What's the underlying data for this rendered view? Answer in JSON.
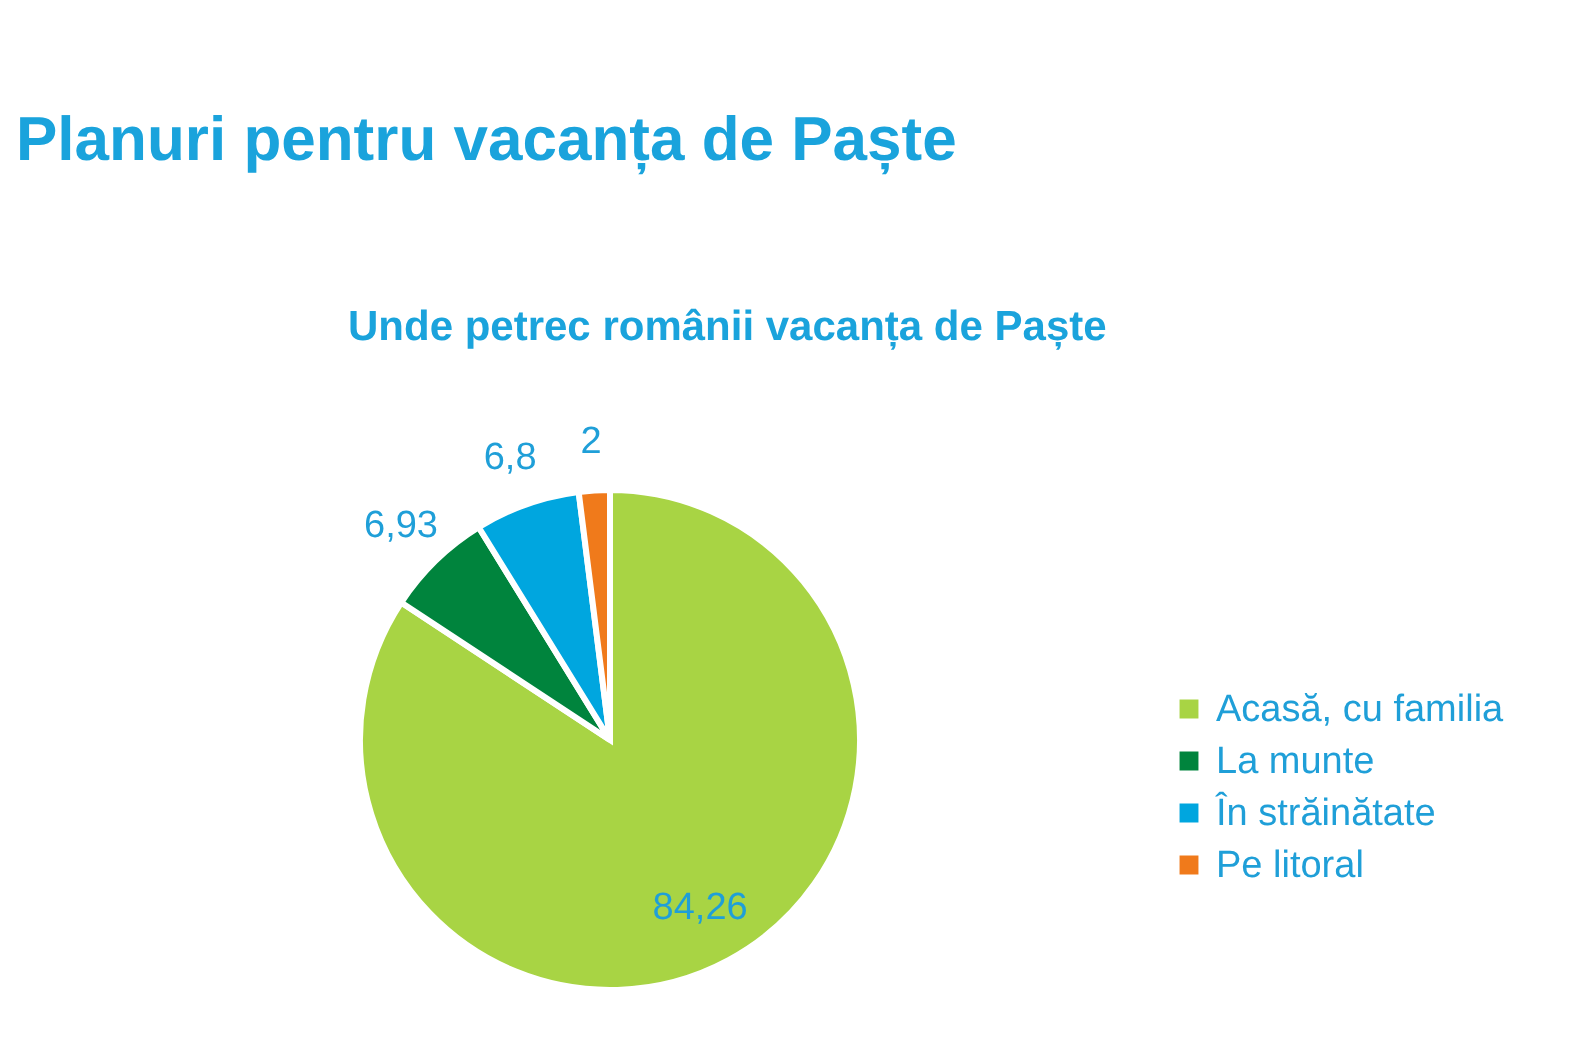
{
  "chart_data": {
    "type": "pie",
    "title": "Planuri pentru vacanța de Paște",
    "subtitle": "Unde petrec românii vacanța de Paște",
    "categories": [
      "Acasă, cu familia",
      "La munte",
      "În străinătate",
      "Pe litoral"
    ],
    "values": [
      84.26,
      6.93,
      6.8,
      2
    ],
    "value_labels": [
      "84,26",
      "6,93",
      "6,8",
      "2"
    ],
    "colors": [
      "#a8d444",
      "#00843d",
      "#00a6df",
      "#f07a1b"
    ],
    "legend": "right"
  }
}
